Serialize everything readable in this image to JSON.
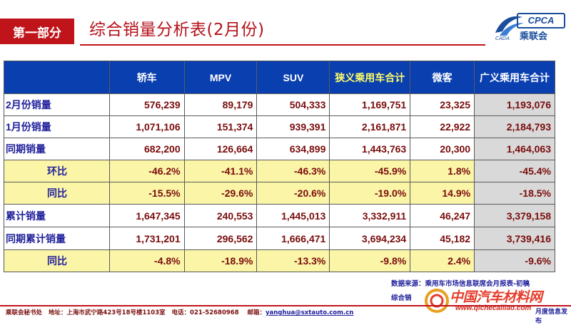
{
  "header": {
    "section_badge": "第一部分",
    "title": "综合销量分析表(2月份)",
    "logo": {
      "brand": "CPCA",
      "brand_cn": "乘联会",
      "sub": "CADA"
    }
  },
  "table": {
    "columns": [
      "轿车",
      "MPV",
      "SUV",
      "狭义乘用车合计",
      "微客",
      "广义乘用车合计"
    ],
    "rows": [
      {
        "label": "2月份销量",
        "values": [
          "576,239",
          "89,179",
          "504,333",
          "1,169,751",
          "23,325",
          "1,193,076"
        ]
      },
      {
        "label": "1月份销量",
        "values": [
          "1,071,106",
          "151,374",
          "939,391",
          "2,161,871",
          "22,922",
          "2,184,793"
        ]
      },
      {
        "label": "同期销量",
        "values": [
          "682,200",
          "126,664",
          "634,899",
          "1,443,763",
          "20,300",
          "1,464,063"
        ]
      },
      {
        "label": "环比",
        "values": [
          "-46.2%",
          "-41.1%",
          "-46.3%",
          "-45.9%",
          "1.8%",
          "-45.4%"
        ]
      },
      {
        "label": "同比",
        "values": [
          "-15.5%",
          "-29.6%",
          "-20.6%",
          "-19.0%",
          "14.9%",
          "-18.5%"
        ]
      },
      {
        "label": "累计销量",
        "values": [
          "1,647,345",
          "240,553",
          "1,445,013",
          "3,332,911",
          "46,247",
          "3,379,158"
        ]
      },
      {
        "label": "同期累计销量",
        "values": [
          "1,731,201",
          "296,562",
          "1,666,471",
          "3,694,234",
          "45,182",
          "3,739,416"
        ]
      },
      {
        "label": "同比",
        "values": [
          "-4.8%",
          "-18.9%",
          "-13.3%",
          "-9.8%",
          "2.4%",
          "-9.6%"
        ]
      }
    ]
  },
  "notes": {
    "source_line1": "数据来源：乘用车市场信息联席会月报表-初稿",
    "source_line2": "综合销",
    "source_tail": "月度信息发布"
  },
  "watermark": {
    "title": "中国汽车材料网",
    "url": "www.qichecailiao.com"
  },
  "footer": {
    "org": "乘联会秘书处",
    "address": "地址：上海市武宁路423号18号楼1103室",
    "phone": "电话：021-52680968",
    "email_label": "邮箱：",
    "email": "yanghua@sxtauto.com.cn"
  },
  "colors": {
    "accent_red": "#c0141b",
    "header_blue": "#0a3fb0",
    "ratio_yellow": "#fbf5a8",
    "total_grey": "#d9d9d9"
  }
}
